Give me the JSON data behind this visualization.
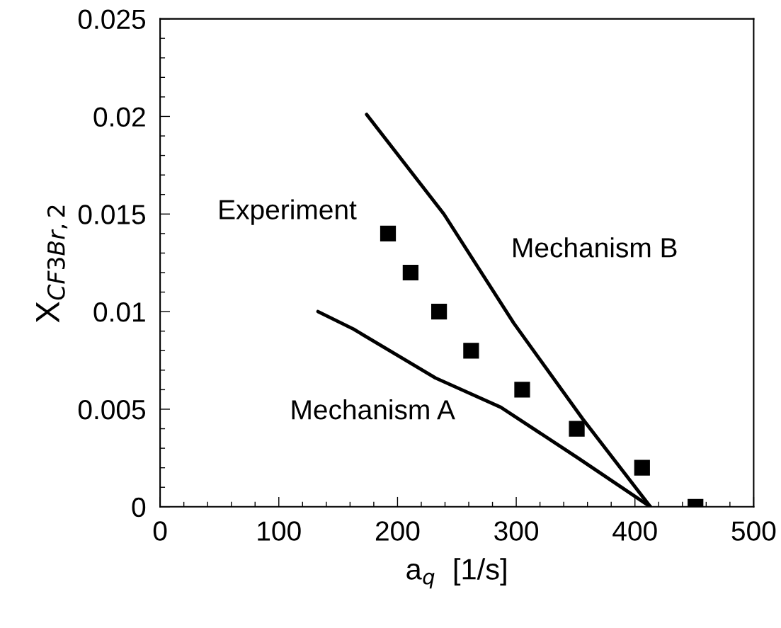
{
  "chart_data": {
    "type": "line",
    "xlabel": "a$_{q}$  [1/s]",
    "ylabel": "X$_{CF3Br,2}$",
    "xlim": [
      0,
      500
    ],
    "xticks": [
      0,
      100,
      200,
      300,
      400,
      500
    ],
    "ylim": [
      0,
      0.025
    ],
    "yticks": [
      0,
      0.005,
      0.01,
      0.015,
      0.02,
      0.025
    ],
    "grid": false,
    "legend": false,
    "series": [
      {
        "type": "scatter",
        "marker": "square",
        "color": "#000000",
        "x": [
          192,
          211,
          235,
          262,
          305,
          351,
          406,
          451
        ],
        "values": [
          0.014,
          0.012,
          0.01,
          0.008,
          0.006,
          0.004,
          0.002,
          0
        ]
      },
      {
        "marker": "none",
        "line_style": "solid",
        "color": "#000000",
        "x": [
          174,
          239,
          298,
          356,
          413
        ],
        "values": [
          0.0201,
          0.015,
          0.0094,
          0.0045,
          0
        ]
      },
      {
        "marker": "none",
        "line_style": "solid",
        "color": "#000000",
        "x": [
          133,
          163,
          232,
          287,
          352,
          413
        ],
        "values": [
          0.01,
          0.0091,
          0.0066,
          0.0051,
          0.0025,
          0
        ]
      }
    ],
    "annotations": [
      "Experiment",
      "Mechanism B",
      "Mechanism A"
    ]
  }
}
